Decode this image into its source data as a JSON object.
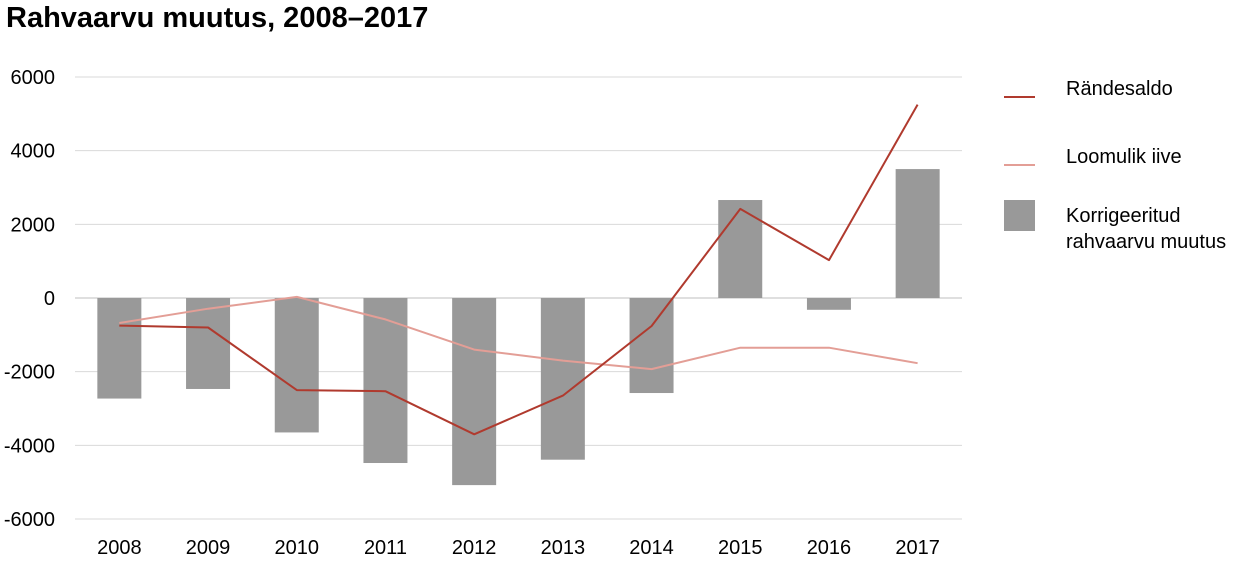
{
  "chart_data": {
    "type": "bar",
    "title": "Rahvaarvu muutus, 2008–2017",
    "xlabel": "",
    "ylabel": "",
    "categories": [
      "2008",
      "2009",
      "2010",
      "2011",
      "2012",
      "2013",
      "2014",
      "2015",
      "2016",
      "2017"
    ],
    "ylim": [
      -6000,
      6000
    ],
    "yticks": [
      6000,
      4000,
      2000,
      0,
      -2000,
      -4000,
      -6000
    ],
    "yticklabels": [
      "6000",
      "4000",
      "2000",
      "0",
      "-2000",
      "-4000",
      "-6000"
    ],
    "grid": true,
    "legend_position": "right",
    "series": [
      {
        "name": "Rändesaldo",
        "kind": "line",
        "color": "#B03A2E",
        "values": [
          -750,
          -800,
          -2500,
          -2530,
          -3700,
          -2650,
          -760,
          2420,
          1030,
          5250
        ]
      },
      {
        "name": "Loomulik iive",
        "kind": "line",
        "color": "#E39E96",
        "values": [
          -680,
          -290,
          30,
          -580,
          -1400,
          -1700,
          -1930,
          -1350,
          -1350,
          -1770
        ]
      },
      {
        "name": "Korrigeeritud rahvaarvu muutus",
        "kind": "bar",
        "color": "#999999",
        "values": [
          -2730,
          -2470,
          -3650,
          -4480,
          -5080,
          -4390,
          -2580,
          2660,
          -320,
          3500
        ]
      }
    ]
  },
  "legend": {
    "items": [
      {
        "line1": "Rändesaldo",
        "line2": "",
        "color": "#B03A2E",
        "marker": "line"
      },
      {
        "line1": "Loomulik iive",
        "line2": "",
        "color": "#E39E96",
        "marker": "line"
      },
      {
        "line1": "Korrigeeritud",
        "line2": "rahvaarvu muutus",
        "color": "#999999",
        "marker": "box"
      }
    ]
  },
  "colors": {
    "grid": "#D9D9D9",
    "axis": "#BFBFBF"
  }
}
